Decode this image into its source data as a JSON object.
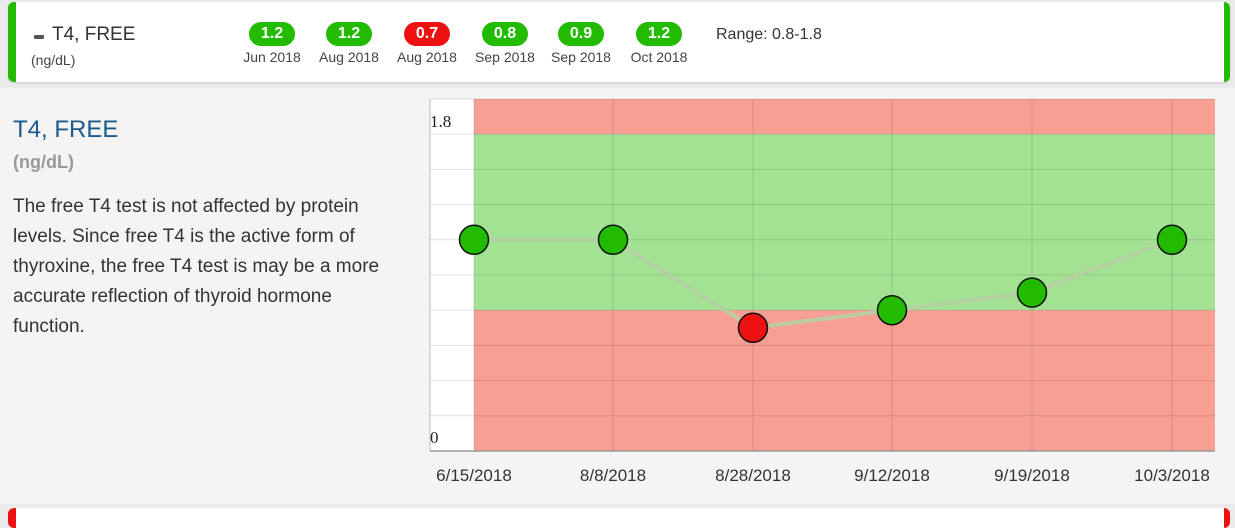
{
  "header": {
    "name": "T4, FREE",
    "unit": "(ng/dL)",
    "results": [
      {
        "value": "1.2",
        "date": "Jun 2018",
        "status": "normal"
      },
      {
        "value": "1.2",
        "date": "Aug 2018",
        "status": "normal"
      },
      {
        "value": "0.7",
        "date": "Aug 2018",
        "status": "low"
      },
      {
        "value": "0.8",
        "date": "Sep 2018",
        "status": "normal"
      },
      {
        "value": "0.9",
        "date": "Sep 2018",
        "status": "normal"
      },
      {
        "value": "1.2",
        "date": "Oct 2018",
        "status": "normal"
      }
    ],
    "range": "Range: 0.8-1.8"
  },
  "detail": {
    "title": "T4, FREE",
    "unit": "(ng/dL)",
    "description": "The free T4 test is not affected by protein levels. Since free T4 is the active form of thyroxine, the free T4 test is may be a more accurate reflection of thyroid hormone function."
  },
  "chart_data": {
    "type": "line",
    "x": [
      "6/15/2018",
      "8/8/2018",
      "8/28/2018",
      "9/12/2018",
      "9/19/2018",
      "10/3/2018"
    ],
    "series": [
      {
        "values": [
          1.2,
          1.2,
          0.7,
          0.8,
          0.9,
          1.2
        ]
      }
    ],
    "ylim": [
      0,
      2.0
    ],
    "y_tick_labels": [
      "1.8",
      "0"
    ],
    "normal_range": [
      0.8,
      1.8
    ],
    "grid": true,
    "colors": {
      "normal_band": "#a3e293",
      "out_of_range_band": "#f79f94",
      "point_ok": "#22bb00",
      "point_bad": "#ee1111",
      "line": "#b5cfa3"
    }
  }
}
